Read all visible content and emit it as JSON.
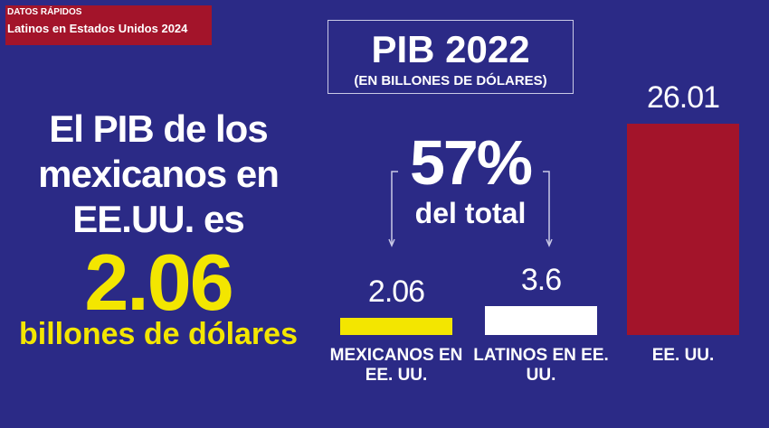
{
  "header": {
    "kicker": "DATOS RÁPIDOS",
    "title": "Latinos en Estados Unidos 2024"
  },
  "headline": {
    "text": "El PIB de los mexicanos en EE.UU. es",
    "figure": "2.06",
    "unit": "billones de dólares"
  },
  "chart_data": {
    "type": "bar",
    "title": "PIB 2022",
    "subtitle": "(EN BILLONES DE DÓLARES)",
    "annotation": {
      "value": "57%",
      "text": "del total"
    },
    "categories": [
      "MEXICANOS EN EE. UU.",
      "LATINOS EN EE. UU.",
      "EE. UU."
    ],
    "values": [
      2.06,
      3.6,
      26.01
    ],
    "colors": [
      "#f3e600",
      "#ffffff",
      "#a3142a"
    ]
  }
}
